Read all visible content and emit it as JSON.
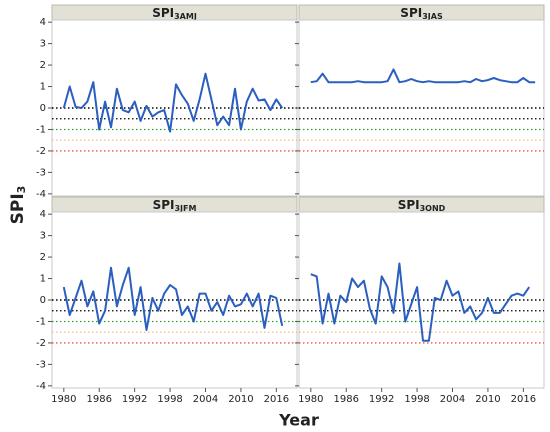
{
  "y_label": "SPI",
  "y_label_sub": "3",
  "x_label": "Year",
  "reference_lines": [
    {
      "value": 0,
      "color": "#000000"
    },
    {
      "value": -0.5,
      "color": "#000000"
    },
    {
      "value": -1,
      "color": "#2e9e3e"
    },
    {
      "value": -1.5,
      "color": "#f2b27a"
    },
    {
      "value": -2,
      "color": "#e0302a"
    }
  ],
  "chart_data": [
    {
      "type": "line",
      "title": "SPI",
      "title_sub": "3AMJ",
      "color": "#2b5fbf",
      "x": [
        1980,
        1981,
        1982,
        1983,
        1984,
        1985,
        1986,
        1987,
        1988,
        1989,
        1990,
        1991,
        1992,
        1993,
        1994,
        1995,
        1996,
        1997,
        1998,
        1999,
        2000,
        2001,
        2002,
        2003,
        2004,
        2005,
        2006,
        2007,
        2008,
        2009,
        2010,
        2011,
        2012,
        2013,
        2014,
        2015,
        2016,
        2017
      ],
      "values": [
        0,
        1.0,
        0.05,
        0,
        0.3,
        1.2,
        -1.0,
        0.3,
        -0.9,
        0.9,
        -0.1,
        -0.2,
        0.3,
        -0.6,
        0.1,
        -0.4,
        -0.2,
        -0.1,
        -1.1,
        1.1,
        0.6,
        0.2,
        -0.6,
        0.4,
        1.6,
        0.4,
        -0.8,
        -0.4,
        -0.8,
        0.9,
        -1.0,
        0.3,
        0.9,
        0.35,
        0.4,
        -0.1,
        0.4,
        0
      ],
      "xlim": [
        1978,
        2019.5
      ],
      "ylim": [
        -4.1,
        4.1
      ],
      "yticks": [
        4,
        3,
        2,
        1,
        0,
        -1,
        -2,
        -3,
        -4
      ]
    },
    {
      "type": "line",
      "title": "SPI",
      "title_sub": "3JAS",
      "color": "#2b5fbf",
      "x": [
        1980,
        1981,
        1982,
        1983,
        1984,
        1985,
        1986,
        1987,
        1988,
        1989,
        1990,
        1991,
        1992,
        1993,
        1994,
        1995,
        1996,
        1997,
        1998,
        1999,
        2000,
        2001,
        2002,
        2003,
        2004,
        2005,
        2006,
        2007,
        2008,
        2009,
        2010,
        2011,
        2012,
        2013,
        2014,
        2015,
        2016,
        2017,
        2018
      ],
      "values": [
        1.2,
        1.25,
        1.6,
        1.2,
        1.2,
        1.2,
        1.2,
        1.2,
        1.25,
        1.2,
        1.2,
        1.2,
        1.2,
        1.25,
        1.8,
        1.2,
        1.25,
        1.35,
        1.25,
        1.2,
        1.25,
        1.2,
        1.2,
        1.2,
        1.2,
        1.2,
        1.25,
        1.2,
        1.35,
        1.25,
        1.3,
        1.4,
        1.3,
        1.25,
        1.2,
        1.2,
        1.4,
        1.2,
        1.2
      ],
      "xlim": [
        1978,
        2019.5
      ],
      "ylim": [
        -4.1,
        4.1
      ],
      "yticks": [
        4,
        3,
        2,
        1,
        0,
        -1,
        -2,
        -3,
        -4
      ]
    },
    {
      "type": "line",
      "title": "SPI",
      "title_sub": "3JFM",
      "color": "#2b5fbf",
      "x": [
        1980,
        1981,
        1982,
        1983,
        1984,
        1985,
        1986,
        1987,
        1988,
        1989,
        1990,
        1991,
        1992,
        1993,
        1994,
        1995,
        1996,
        1997,
        1998,
        1999,
        2000,
        2001,
        2002,
        2003,
        2004,
        2005,
        2006,
        2007,
        2008,
        2009,
        2010,
        2011,
        2012,
        2013,
        2014,
        2015,
        2016,
        2017
      ],
      "values": [
        0.6,
        -0.7,
        0.1,
        0.9,
        -0.3,
        0.4,
        -1.1,
        -0.5,
        1.5,
        -0.3,
        0.7,
        1.5,
        -0.7,
        0.6,
        -1.4,
        0.1,
        -0.5,
        0.3,
        0.7,
        0.5,
        -0.7,
        -0.3,
        -1.0,
        0.3,
        0.3,
        -0.5,
        -0.1,
        -0.7,
        0.2,
        -0.3,
        -0.2,
        0.3,
        -0.3,
        0.3,
        -1.3,
        0.2,
        0.1,
        -1.2
      ],
      "xlim": [
        1978,
        2019.5
      ],
      "ylim": [
        -4.1,
        4.1
      ],
      "yticks": [
        4,
        3,
        2,
        1,
        0,
        -1,
        -2,
        -3,
        -4
      ],
      "xticks": [
        1980,
        1986,
        1992,
        1998,
        2004,
        2010,
        2016
      ]
    },
    {
      "type": "line",
      "title": "SPI",
      "title_sub": "3OND",
      "color": "#2b5fbf",
      "x": [
        1980,
        1981,
        1982,
        1983,
        1984,
        1985,
        1986,
        1987,
        1988,
        1989,
        1990,
        1991,
        1992,
        1993,
        1994,
        1995,
        1996,
        1997,
        1998,
        1999,
        2000,
        2001,
        2002,
        2003,
        2004,
        2005,
        2006,
        2007,
        2008,
        2009,
        2010,
        2011,
        2012,
        2013,
        2014,
        2015,
        2016,
        2017
      ],
      "values": [
        1.2,
        1.1,
        -1.1,
        0.3,
        -1.1,
        0.2,
        -0.1,
        1.0,
        0.6,
        0.9,
        -0.4,
        -1.1,
        1.1,
        0.6,
        -0.6,
        1.7,
        -1.0,
        -0.2,
        0.6,
        -1.9,
        -1.9,
        0.1,
        0.0,
        0.9,
        0.2,
        0.4,
        -0.6,
        -0.3,
        -0.9,
        -0.6,
        0.1,
        -0.6,
        -0.6,
        -0.2,
        0.2,
        0.3,
        0.2,
        0.6
      ],
      "xlim": [
        1978,
        2019.5
      ],
      "ylim": [
        -4.1,
        4.1
      ],
      "yticks": [
        4,
        3,
        2,
        1,
        0,
        -1,
        -2,
        -3,
        -4
      ],
      "xticks": [
        1980,
        1986,
        1992,
        1998,
        2004,
        2010,
        2016
      ]
    }
  ]
}
